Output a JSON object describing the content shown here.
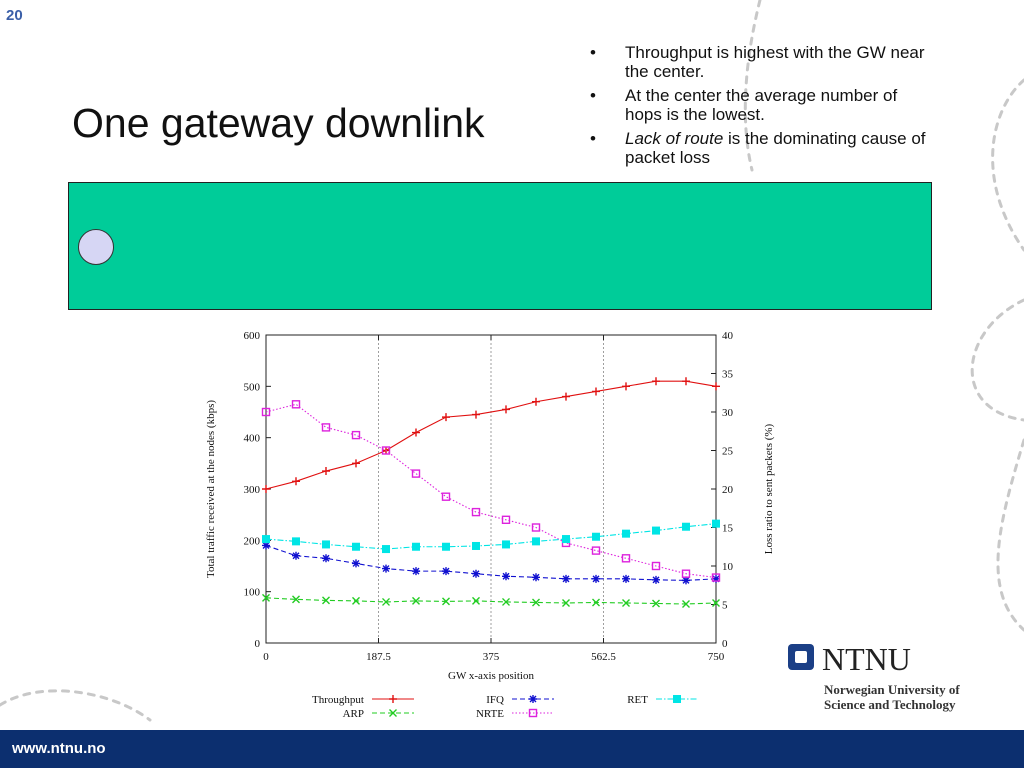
{
  "slide_number": "20",
  "title": "One gateway downlink",
  "bullets": [
    {
      "marker": "•",
      "parts": [
        {
          "text": "Throughput is highest with the GW near the center.",
          "italic": false
        }
      ]
    },
    {
      "marker": "•",
      "parts": [
        {
          "text": "At the center the average number of hops is the lowest.",
          "italic": false
        }
      ]
    },
    {
      "marker": "•",
      "parts": [
        {
          "text": "Lack of route",
          "italic": true
        },
        {
          "text": " is the dominating cause of packet loss",
          "italic": false
        }
      ]
    }
  ],
  "logo": {
    "name": "NTNU",
    "subtitle_line1": "Norwegian University of",
    "subtitle_line2": "Science and Technology"
  },
  "footer": {
    "url": "www.ntnu.no"
  },
  "colors": {
    "footer_bg": "#0c2f6f",
    "green_box": "#00cc99",
    "circle": "#d6d6f4",
    "accent": "#3b5fa8"
  },
  "chart_data": {
    "type": "line",
    "xlabel": "GW x-axis position",
    "ylabel_left": "Total traffic received at the nodes (kbps)",
    "ylabel_right": "Loss ratio to sent packets (%)",
    "xlim": [
      0,
      750
    ],
    "ylim_left": [
      0,
      600
    ],
    "ylim_right": [
      0,
      40
    ],
    "x_ticks": [
      "0",
      "187.5",
      "375",
      "562.5",
      "750"
    ],
    "y_ticks_left": [
      "0",
      "100",
      "200",
      "300",
      "400",
      "500",
      "600"
    ],
    "y_ticks_right": [
      "0",
      "5",
      "10",
      "15",
      "20",
      "25",
      "30",
      "35",
      "40"
    ],
    "vertical_gridlines": [
      187.5,
      375,
      562.5
    ],
    "legend_position": "bottom",
    "series": [
      {
        "name": "Throughput",
        "axis": "left",
        "color": "#e01010",
        "marker": "plus",
        "dash": "solid",
        "x": [
          0,
          50,
          100,
          150,
          200,
          250,
          300,
          350,
          400,
          450,
          500,
          550,
          600,
          650,
          700,
          750
        ],
        "values": [
          300,
          315,
          335,
          350,
          375,
          410,
          440,
          445,
          455,
          470,
          480,
          490,
          500,
          510,
          510,
          500
        ]
      },
      {
        "name": "ARP",
        "axis": "left",
        "color": "#22cc22",
        "marker": "x",
        "dash": "dashed",
        "x": [
          0,
          50,
          100,
          150,
          200,
          250,
          300,
          350,
          400,
          450,
          500,
          550,
          600,
          650,
          700,
          750
        ],
        "values": [
          88,
          85,
          83,
          82,
          80,
          82,
          81,
          82,
          80,
          79,
          78,
          79,
          78,
          77,
          76,
          78
        ]
      },
      {
        "name": "IFQ",
        "axis": "left",
        "color": "#1010d0",
        "marker": "star",
        "dash": "dashed",
        "x": [
          0,
          50,
          100,
          150,
          200,
          250,
          300,
          350,
          400,
          450,
          500,
          550,
          600,
          650,
          700,
          750
        ],
        "values": [
          190,
          170,
          165,
          155,
          145,
          140,
          140,
          135,
          130,
          128,
          125,
          125,
          125,
          123,
          122,
          125
        ]
      },
      {
        "name": "NRTE",
        "axis": "right",
        "color": "#dd22dd",
        "marker": "square-open",
        "dash": "dotted",
        "x": [
          0,
          50,
          100,
          150,
          200,
          250,
          300,
          350,
          400,
          450,
          500,
          550,
          600,
          650,
          700,
          750
        ],
        "values": [
          30,
          31,
          28,
          27,
          25,
          22,
          19,
          17,
          16,
          15,
          13,
          12,
          11,
          10,
          9,
          8.5
        ]
      },
      {
        "name": "RET",
        "axis": "right",
        "color": "#00e5e5",
        "marker": "square-filled",
        "dash": "dashdot",
        "x": [
          0,
          50,
          100,
          150,
          200,
          250,
          300,
          350,
          400,
          450,
          500,
          550,
          600,
          650,
          700,
          750
        ],
        "values": [
          13.5,
          13.2,
          12.8,
          12.5,
          12.2,
          12.5,
          12.5,
          12.6,
          12.8,
          13.2,
          13.5,
          13.8,
          14.2,
          14.6,
          15.1,
          15.5
        ]
      }
    ]
  }
}
